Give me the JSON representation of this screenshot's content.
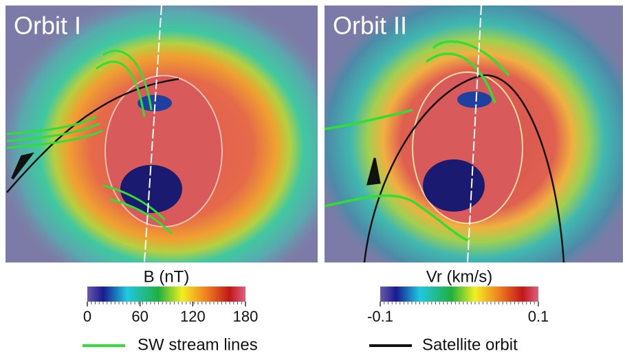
{
  "panels": [
    {
      "title": "Orbit I",
      "colorbar": {
        "label": "B (nT)",
        "lim": [
          0,
          180
        ],
        "ticks": [
          0,
          60,
          120,
          180
        ]
      }
    },
    {
      "title": "Orbit II",
      "colorbar": {
        "label": "Vr (km/s)",
        "lim": [
          -0.1,
          0.1
        ],
        "ticks": [
          -0.1,
          0.1
        ]
      }
    }
  ],
  "legend": [
    {
      "label": "SW stream lines",
      "color": "#33dd33"
    },
    {
      "label": "Satellite orbit",
      "color": "#111111"
    }
  ]
}
